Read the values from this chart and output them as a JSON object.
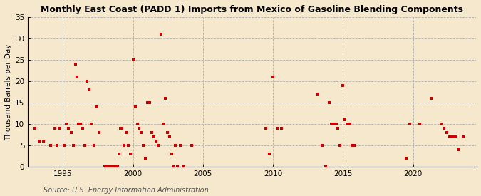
{
  "title": "Monthly East Coast (PADD 1) Imports from Mexico of Gasoline Blending Components",
  "ylabel": "Thousand Barrels per Day",
  "source": "Source: U.S. Energy Information Administration",
  "background_color": "#f5e8cc",
  "plot_bg_color": "#f5e8cc",
  "dot_color": "#cc0000",
  "xlim": [
    1992.5,
    2024.5
  ],
  "ylim": [
    0,
    35
  ],
  "yticks": [
    0,
    5,
    10,
    15,
    20,
    25,
    30,
    35
  ],
  "xticks": [
    1995,
    2000,
    2005,
    2010,
    2015,
    2020
  ],
  "data_x": [
    1993.0,
    1993.3,
    1993.6,
    1994.1,
    1994.4,
    1994.6,
    1994.8,
    1995.1,
    1995.25,
    1995.4,
    1995.6,
    1995.75,
    1995.9,
    1996.0,
    1996.1,
    1996.25,
    1996.4,
    1996.55,
    1996.7,
    1996.85,
    1997.0,
    1997.2,
    1997.4,
    1997.6,
    1998.0,
    1998.1,
    1998.2,
    1998.3,
    1998.4,
    1998.5,
    1998.6,
    1998.7,
    1998.8,
    1998.9,
    1999.0,
    1999.1,
    1999.2,
    1999.35,
    1999.5,
    1999.65,
    1999.8,
    2000.0,
    2000.15,
    2000.3,
    2000.45,
    2000.6,
    2000.75,
    2000.9,
    2001.05,
    2001.2,
    2001.35,
    2001.5,
    2001.65,
    2001.8,
    2002.0,
    2002.15,
    2002.3,
    2002.45,
    2002.6,
    2002.75,
    2002.9,
    2003.0,
    2003.15,
    2003.4,
    2003.6,
    2004.2,
    2009.5,
    2009.75,
    2010.0,
    2010.3,
    2010.6,
    2013.2,
    2013.5,
    2013.75,
    2014.0,
    2014.15,
    2014.35,
    2014.5,
    2014.65,
    2014.8,
    2015.0,
    2015.15,
    2015.3,
    2015.5,
    2015.65,
    2015.8,
    2019.5,
    2019.75,
    2020.5,
    2021.3,
    2022.0,
    2022.2,
    2022.4,
    2022.6,
    2022.8,
    2023.0,
    2023.3,
    2023.6
  ],
  "data_y": [
    9,
    6,
    6,
    5,
    9,
    5,
    9,
    5,
    10,
    9,
    8,
    5,
    24,
    21,
    10,
    10,
    9,
    5,
    20,
    18,
    10,
    5,
    14,
    8,
    0,
    0,
    0,
    0,
    0,
    0,
    0,
    0,
    0,
    0,
    3,
    9,
    9,
    5,
    8,
    5,
    3,
    25,
    14,
    10,
    9,
    8,
    5,
    2,
    15,
    15,
    8,
    7,
    6,
    5,
    31,
    10,
    16,
    8,
    7,
    3,
    0,
    5,
    0,
    5,
    0,
    5,
    9,
    3,
    21,
    9,
    9,
    17,
    5,
    0,
    15,
    10,
    10,
    10,
    9,
    5,
    19,
    11,
    10,
    10,
    5,
    5,
    2,
    10,
    10,
    16,
    10,
    9,
    8,
    7,
    7,
    7,
    4,
    7
  ]
}
